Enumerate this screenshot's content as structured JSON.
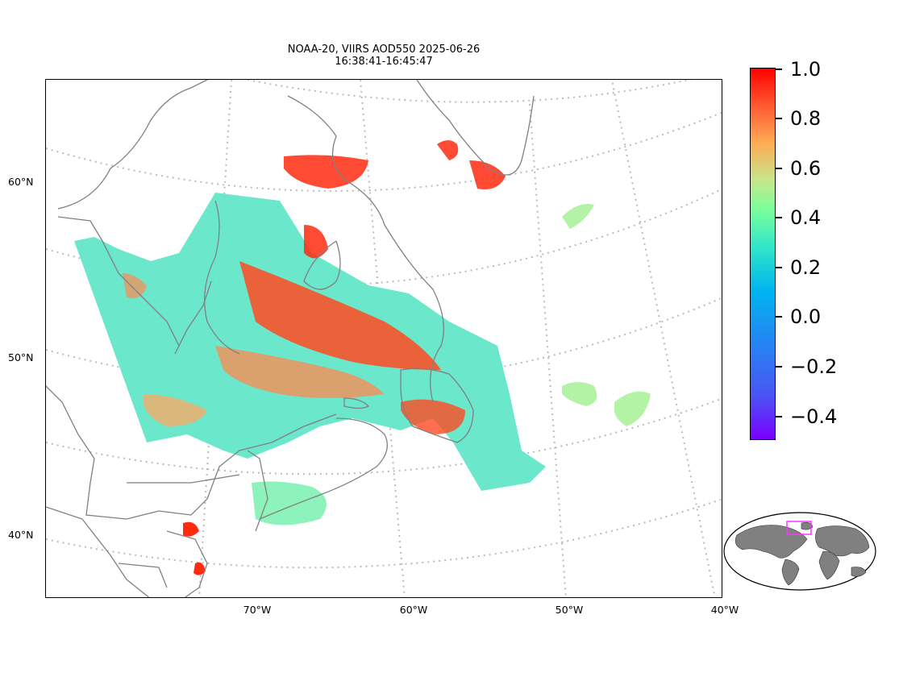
{
  "title": {
    "line1": "NOAA-20, VIIRS AOD550 2025-06-26",
    "line2": "16:38:41-16:45:47"
  },
  "lat_labels": [
    "60°N",
    "50°N",
    "40°N"
  ],
  "lon_labels": [
    "70°W",
    "60°W",
    "50°W",
    "40°W"
  ],
  "colorbar": {
    "ticks": [
      "1.0",
      "0.8",
      "0.6",
      "0.4",
      "0.2",
      "0.0",
      "−0.2",
      "−0.4"
    ],
    "colormap": "rainbow",
    "range": [
      -0.5,
      1.0
    ],
    "colors": {
      "low": "#7a00ff",
      "mid": "#33e6c8",
      "high": "#ff0000"
    }
  },
  "colors": {
    "coastline": "#808080",
    "graticule": "#bbbbbb",
    "land_inset": "#808080",
    "region_box": "#ff33ff"
  }
}
